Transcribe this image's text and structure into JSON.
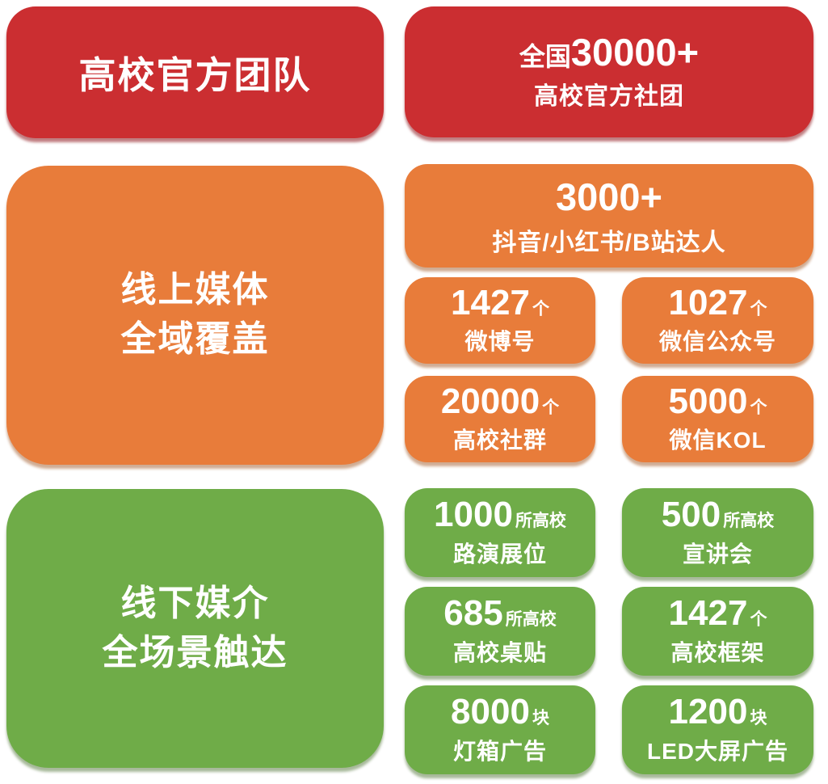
{
  "colors": {
    "red": "#CB2E31",
    "orange": "#E87C3A",
    "green": "#6FAC48",
    "text_on_color": "#FFFFFF",
    "page_bg": "#FFFFFF"
  },
  "row_official": {
    "title": "高校官方团队",
    "stat_prefix": "全国",
    "stat_value": "30000+",
    "stat_label": "高校官方社团"
  },
  "section_online": {
    "title_line1": "线上媒体",
    "title_line2": "全域覆盖",
    "hero": {
      "value": "3000+",
      "label": "抖音/小红书/B站达人"
    },
    "stats": [
      {
        "value": "1427",
        "unit": "个",
        "label": "微博号"
      },
      {
        "value": "1027",
        "unit": "个",
        "label": "微信公众号"
      },
      {
        "value": "20000",
        "unit": "个",
        "label": "高校社群"
      },
      {
        "value": "5000",
        "unit": "个",
        "label": "微信KOL"
      }
    ]
  },
  "section_offline": {
    "title_line1": "线下媒介",
    "title_line2": "全场景触达",
    "stats": [
      {
        "value": "1000",
        "unit": "所高校",
        "label": "路演展位"
      },
      {
        "value": "500",
        "unit": "所高校",
        "label": "宣讲会"
      },
      {
        "value": "685",
        "unit": "所高校",
        "label": "高校桌贴"
      },
      {
        "value": "1427",
        "unit": "个",
        "label": "高校框架"
      },
      {
        "value": "8000",
        "unit": "块",
        "label": "灯箱广告"
      },
      {
        "value": "1200",
        "unit": "块",
        "label": "LED大屏广告"
      }
    ]
  }
}
